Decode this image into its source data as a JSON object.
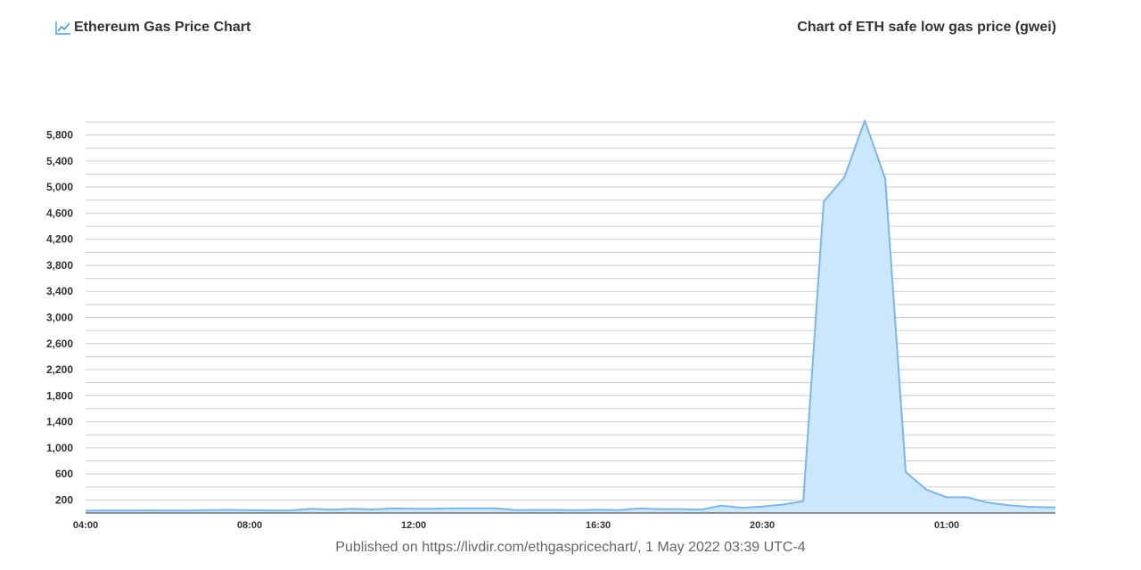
{
  "header": {
    "title": "Ethereum Gas Price Chart",
    "chart_caption": "Chart of ETH safe low gas price (gwei)"
  },
  "footer": {
    "published": "Published on https://livdir.com/ethgaspricechart/, 1 May 2022 03:39 UTC-4"
  },
  "colors": {
    "line": "#7eb6e6",
    "fill": "#cce6fb",
    "grid": "#cccccc",
    "icon": "#4a9be0"
  },
  "chart_data": {
    "type": "area",
    "title": "Chart of ETH safe low gas price (gwei)",
    "xlabel": "",
    "ylabel": "",
    "grid": true,
    "legend": "none",
    "x_range": [
      "04:00",
      "03:39"
    ],
    "ylim": [
      0,
      6000
    ],
    "y_ticks": [
      200,
      600,
      1000,
      1400,
      1800,
      2200,
      2600,
      3000,
      3400,
      3800,
      4200,
      4600,
      5000,
      5400,
      5800
    ],
    "y_tick_labels": [
      "200",
      "600",
      "1,000",
      "1,400",
      "1,800",
      "2,200",
      "2,600",
      "3,000",
      "3,400",
      "3,800",
      "4,200",
      "4,600",
      "5,000",
      "5,400",
      "5,800"
    ],
    "x_ticks": [
      "04:00",
      "08:00",
      "12:00",
      "16:30",
      "20:30",
      "01:00"
    ],
    "x": [
      "04:00",
      "04:30",
      "05:00",
      "05:30",
      "06:00",
      "06:30",
      "07:00",
      "07:30",
      "08:00",
      "08:30",
      "09:00",
      "09:30",
      "10:00",
      "10:30",
      "11:00",
      "11:30",
      "12:00",
      "12:30",
      "13:00",
      "13:30",
      "14:00",
      "14:30",
      "15:00",
      "15:30",
      "16:00",
      "16:30",
      "17:00",
      "17:30",
      "18:00",
      "18:30",
      "19:00",
      "19:30",
      "20:00",
      "20:30",
      "21:00",
      "21:30",
      "22:00",
      "22:30",
      "23:00",
      "23:30",
      "00:00",
      "00:30",
      "01:00",
      "01:30",
      "02:00",
      "02:30",
      "03:00",
      "03:39"
    ],
    "values": [
      35,
      38,
      38,
      40,
      38,
      38,
      45,
      48,
      42,
      40,
      40,
      65,
      50,
      65,
      55,
      70,
      65,
      65,
      72,
      72,
      72,
      45,
      48,
      48,
      42,
      50,
      45,
      70,
      60,
      60,
      50,
      115,
      80,
      100,
      130,
      180,
      4780,
      5150,
      6020,
      5130,
      630,
      360,
      240,
      240,
      160,
      120,
      95,
      85
    ]
  }
}
